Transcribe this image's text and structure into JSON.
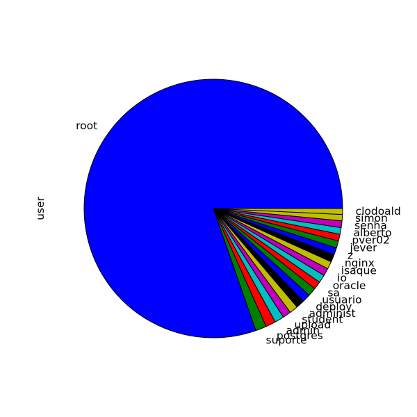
{
  "chart_data": {
    "type": "pie",
    "ylabel": "user",
    "start_angle_deg": 0,
    "direction": "counterclockwise",
    "slices": [
      {
        "label": "root",
        "value": 76.6,
        "color": "#0000ff"
      },
      {
        "label": "suporte",
        "value": 1.3,
        "color": "#008000"
      },
      {
        "label": "postgres",
        "value": 1.2,
        "color": "#ff0000"
      },
      {
        "label": "admin",
        "value": 1.1,
        "color": "#00bfbf"
      },
      {
        "label": "upload",
        "value": 1.0,
        "color": "#bf00bf"
      },
      {
        "label": "student",
        "value": 1.0,
        "color": "#bfbf00"
      },
      {
        "label": "administ",
        "value": 1.0,
        "color": "#000000"
      },
      {
        "label": "deploy",
        "value": 1.0,
        "color": "#0000ff"
      },
      {
        "label": "usuario",
        "value": 1.0,
        "color": "#008000"
      },
      {
        "label": "sa",
        "value": 0.95,
        "color": "#ff0000"
      },
      {
        "label": "oracle",
        "value": 0.95,
        "color": "#00bfbf"
      },
      {
        "label": "io",
        "value": 0.9,
        "color": "#bf00bf"
      },
      {
        "label": "isaque",
        "value": 0.9,
        "color": "#bfbf00"
      },
      {
        "label": "nginx",
        "value": 0.9,
        "color": "#000000"
      },
      {
        "label": "z",
        "value": 0.85,
        "color": "#0000ff"
      },
      {
        "label": "jever",
        "value": 0.85,
        "color": "#008000"
      },
      {
        "label": "pver02",
        "value": 0.8,
        "color": "#ff0000"
      },
      {
        "label": "alberto",
        "value": 0.8,
        "color": "#00bfbf"
      },
      {
        "label": "senha",
        "value": 0.8,
        "color": "#bf00bf"
      },
      {
        "label": "simon",
        "value": 0.75,
        "color": "#bfbf00"
      },
      {
        "label": "clodoald",
        "value": 0.7,
        "color": "#bfbf00"
      }
    ]
  }
}
